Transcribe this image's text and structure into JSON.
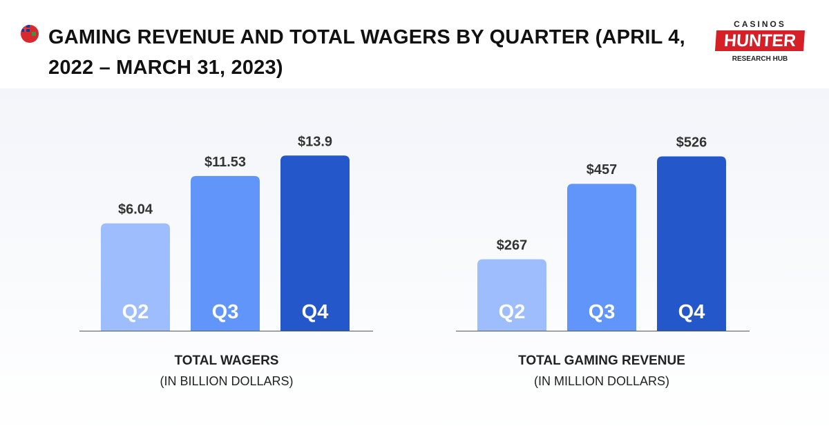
{
  "title": "GAMING REVENUE AND TOTAL WAGERS BY QUARTER (APRIL 4, 2022 – MARCH 31, 2023)",
  "flag_icon": "ontario-flag-icon",
  "logo": {
    "top": "CASINOS",
    "main": "HUNTER",
    "bottom": "RESEARCH HUB"
  },
  "colors": {
    "Q2": "#9dbdfd",
    "Q3": "#6195f9",
    "Q4": "#2457c9"
  },
  "chart_data": [
    {
      "type": "bar",
      "title": "TOTAL WAGERS",
      "subtitle": "(IN BILLION DOLLARS)",
      "categories": [
        "Q2",
        "Q3",
        "Q4"
      ],
      "values": [
        6.04,
        11.53,
        13.9
      ],
      "labels": [
        "$6.04",
        "$11.53",
        "$13.9"
      ],
      "ylim": [
        0,
        15
      ]
    },
    {
      "type": "bar",
      "title": "TOTAL GAMING REVENUE",
      "subtitle": "(IN MILLION DOLLARS)",
      "categories": [
        "Q2",
        "Q3",
        "Q4"
      ],
      "values": [
        267,
        457,
        526
      ],
      "labels": [
        "$267",
        "$457",
        "$526"
      ],
      "ylim": [
        0,
        560
      ]
    }
  ]
}
